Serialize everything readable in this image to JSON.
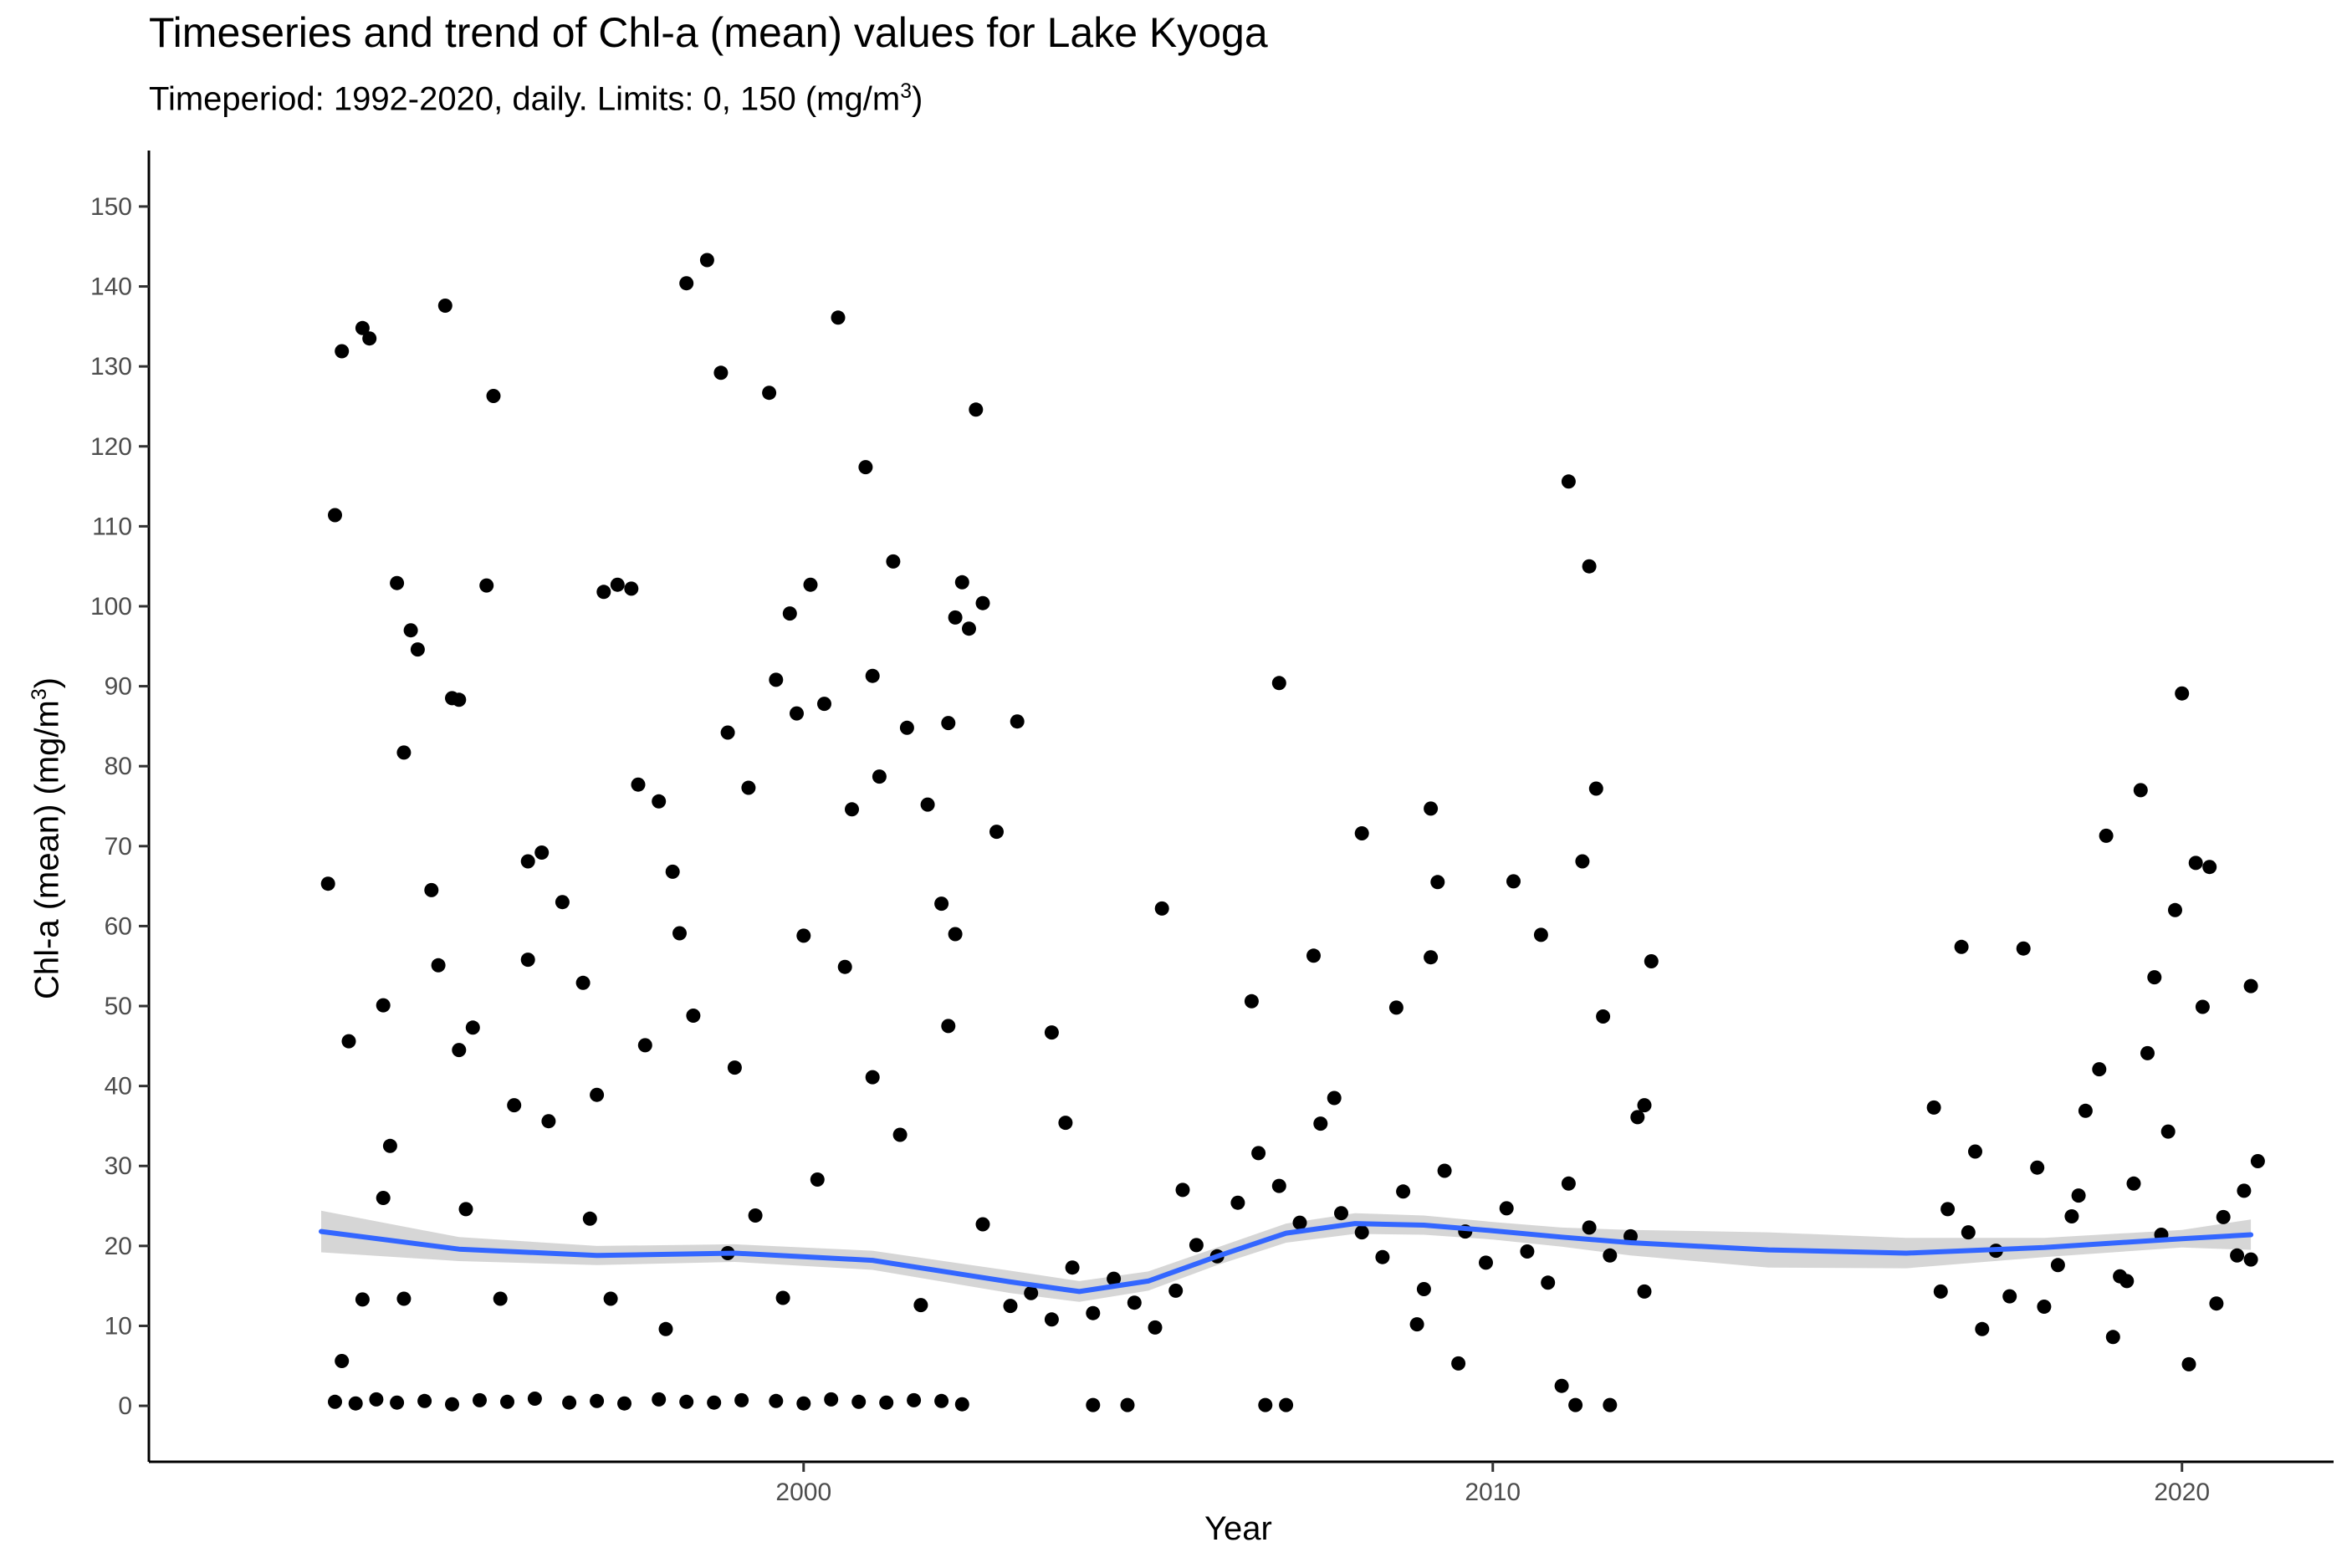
{
  "chart_data": {
    "type": "scatter",
    "title": "Timeseries and trend of Chl-a (mean) values for Lake Kyoga",
    "subtitle_prefix": "Timeperiod: 1992-2020, daily. Limits: 0, 150 (mg/m",
    "subtitle_exp": "3",
    "subtitle_suffix": ")",
    "xlabel": "Year",
    "ylabel_prefix": "Chl-a (mean) (mg/m",
    "ylabel_exp": "3",
    "ylabel_suffix": ")",
    "xlim": [
      1990.5,
      2022.2
    ],
    "ylim": [
      -7,
      157
    ],
    "x_ticks": [
      2000,
      2010,
      2020
    ],
    "x_tick_labels": [
      "2000",
      "2010",
      "2020"
    ],
    "y_ticks": [
      0,
      10,
      20,
      30,
      40,
      50,
      60,
      70,
      80,
      90,
      100,
      110,
      120,
      130,
      140,
      150
    ],
    "y_tick_labels": [
      "0",
      "10",
      "20",
      "30",
      "40",
      "50",
      "60",
      "70",
      "80",
      "90",
      "100",
      "110",
      "120",
      "130",
      "140",
      "150"
    ],
    "grid": false,
    "legend": "none",
    "colors": {
      "points": "#000000",
      "trend": "#3366ff",
      "ribbon": "#999999"
    },
    "points_note": "Representative sample of the daily observations (the source plots several thousand points).",
    "points": [
      [
        1993.2,
        0.5
      ],
      [
        1993.5,
        0.3
      ],
      [
        1993.8,
        0.8
      ],
      [
        1994.1,
        0.4
      ],
      [
        1994.5,
        0.6
      ],
      [
        1994.9,
        0.2
      ],
      [
        1995.3,
        0.7
      ],
      [
        1995.7,
        0.5
      ],
      [
        1996.1,
        0.9
      ],
      [
        1996.6,
        0.4
      ],
      [
        1997.0,
        0.6
      ],
      [
        1997.4,
        0.3
      ],
      [
        1997.9,
        0.8
      ],
      [
        1998.3,
        0.5
      ],
      [
        1998.7,
        0.4
      ],
      [
        1999.1,
        0.7
      ],
      [
        1999.6,
        0.6
      ],
      [
        2000.0,
        0.3
      ],
      [
        2000.4,
        0.8
      ],
      [
        2000.8,
        0.5
      ],
      [
        2001.2,
        0.4
      ],
      [
        2001.6,
        0.7
      ],
      [
        2002.0,
        0.6
      ],
      [
        2002.3,
        0.2
      ],
      [
        1993.1,
        65.3
      ],
      [
        1993.2,
        111.4
      ],
      [
        1993.3,
        131.9
      ],
      [
        1993.6,
        134.8
      ],
      [
        1993.7,
        133.5
      ],
      [
        1993.9,
        50.1
      ],
      [
        1994.1,
        102.9
      ],
      [
        1994.2,
        81.7
      ],
      [
        1994.3,
        97.0
      ],
      [
        1994.4,
        94.6
      ],
      [
        1994.6,
        64.5
      ],
      [
        1994.8,
        137.6
      ],
      [
        1994.9,
        88.5
      ],
      [
        1995.0,
        88.3
      ],
      [
        1995.2,
        47.3
      ],
      [
        1995.4,
        102.6
      ],
      [
        1995.5,
        126.3
      ],
      [
        1995.8,
        37.6
      ],
      [
        1996.0,
        68.1
      ],
      [
        1996.2,
        69.2
      ],
      [
        1996.5,
        63.0
      ],
      [
        1996.8,
        52.9
      ],
      [
        1997.1,
        101.8
      ],
      [
        1997.3,
        102.7
      ],
      [
        1997.5,
        102.2
      ],
      [
        1997.6,
        77.7
      ],
      [
        1997.9,
        75.6
      ],
      [
        1998.1,
        66.8
      ],
      [
        1998.3,
        140.4
      ],
      [
        1998.6,
        143.3
      ],
      [
        1998.8,
        129.2
      ],
      [
        1998.9,
        84.2
      ],
      [
        1999.2,
        77.3
      ],
      [
        1999.5,
        126.7
      ],
      [
        1999.6,
        90.8
      ],
      [
        1999.8,
        99.1
      ],
      [
        1999.9,
        86.6
      ],
      [
        2000.1,
        102.7
      ],
      [
        2000.3,
        87.8
      ],
      [
        2000.5,
        136.1
      ],
      [
        2000.7,
        74.6
      ],
      [
        2000.9,
        117.4
      ],
      [
        2001.0,
        91.3
      ],
      [
        2001.1,
        78.7
      ],
      [
        2001.3,
        105.6
      ],
      [
        2001.5,
        84.8
      ],
      [
        2001.8,
        75.2
      ],
      [
        2002.0,
        62.8
      ],
      [
        2002.1,
        85.4
      ],
      [
        2002.2,
        98.6
      ],
      [
        2002.3,
        103.0
      ],
      [
        2002.4,
        97.2
      ],
      [
        2002.5,
        124.6
      ],
      [
        2002.6,
        100.4
      ],
      [
        2002.8,
        71.8
      ],
      [
        2003.1,
        85.6
      ],
      [
        1993.4,
        45.6
      ],
      [
        1993.6,
        13.3
      ],
      [
        1994.0,
        32.5
      ],
      [
        1994.7,
        55.1
      ],
      [
        1995.1,
        24.6
      ],
      [
        1995.6,
        13.4
      ],
      [
        1996.3,
        35.6
      ],
      [
        1996.9,
        23.4
      ],
      [
        1997.2,
        13.4
      ],
      [
        1997.7,
        45.1
      ],
      [
        1998.0,
        9.6
      ],
      [
        1998.4,
        48.8
      ],
      [
        1998.9,
        19.1
      ],
      [
        1999.3,
        23.8
      ],
      [
        1999.7,
        13.5
      ],
      [
        2000.2,
        28.3
      ],
      [
        2000.6,
        54.9
      ],
      [
        2001.4,
        33.9
      ],
      [
        2001.7,
        12.6
      ],
      [
        2002.1,
        47.5
      ],
      [
        2002.6,
        22.7
      ],
      [
        1993.3,
        5.6
      ],
      [
        1994.2,
        13.4
      ],
      [
        1995.0,
        44.5
      ],
      [
        1996.0,
        55.8
      ],
      [
        1997.0,
        38.9
      ],
      [
        1998.2,
        59.1
      ],
      [
        1999.0,
        42.3
      ],
      [
        2000.0,
        58.8
      ],
      [
        2001.0,
        41.1
      ],
      [
        2002.2,
        59.0
      ],
      [
        1993.9,
        26.0
      ],
      [
        2003.0,
        12.5
      ],
      [
        2003.3,
        14.1
      ],
      [
        2003.6,
        10.8
      ],
      [
        2003.9,
        17.3
      ],
      [
        2004.2,
        11.6
      ],
      [
        2004.5,
        15.9
      ],
      [
        2004.8,
        12.9
      ],
      [
        2005.1,
        9.8
      ],
      [
        2005.4,
        14.4
      ],
      [
        2005.7,
        20.1
      ],
      [
        2006.0,
        18.7
      ],
      [
        2006.3,
        25.4
      ],
      [
        2006.6,
        31.6
      ],
      [
        2006.9,
        27.5
      ],
      [
        2007.2,
        22.9
      ],
      [
        2007.5,
        35.3
      ],
      [
        2007.8,
        24.1
      ],
      [
        2008.1,
        21.7
      ],
      [
        2008.4,
        18.6
      ],
      [
        2008.7,
        26.8
      ],
      [
        2009.0,
        14.6
      ],
      [
        2009.3,
        29.4
      ],
      [
        2009.6,
        21.8
      ],
      [
        2009.9,
        17.9
      ],
      [
        2010.2,
        24.7
      ],
      [
        2010.5,
        19.3
      ],
      [
        2010.8,
        15.4
      ],
      [
        2011.1,
        27.8
      ],
      [
        2011.4,
        22.3
      ],
      [
        2011.7,
        18.8
      ],
      [
        2012.0,
        21.2
      ],
      [
        2012.2,
        14.3
      ],
      [
        2003.6,
        46.7
      ],
      [
        2003.8,
        35.4
      ],
      [
        2004.2,
        0.1
      ],
      [
        2004.7,
        0.1
      ],
      [
        2005.2,
        62.2
      ],
      [
        2005.5,
        27.0
      ],
      [
        2006.5,
        50.6
      ],
      [
        2006.9,
        90.4
      ],
      [
        2006.7,
        0.1
      ],
      [
        2007.0,
        0.1
      ],
      [
        2007.4,
        56.3
      ],
      [
        2007.7,
        38.5
      ],
      [
        2008.1,
        71.6
      ],
      [
        2008.6,
        49.8
      ],
      [
        2009.1,
        74.7
      ],
      [
        2009.2,
        65.5
      ],
      [
        2009.1,
        56.1
      ],
      [
        2010.3,
        65.6
      ],
      [
        2010.7,
        58.9
      ],
      [
        2011.1,
        115.6
      ],
      [
        2011.4,
        105.0
      ],
      [
        2011.5,
        77.2
      ],
      [
        2011.3,
        68.1
      ],
      [
        2011.6,
        48.7
      ],
      [
        2011.0,
        2.5
      ],
      [
        2011.2,
        0.1
      ],
      [
        2011.7,
        0.1
      ],
      [
        2012.3,
        55.6
      ],
      [
        2012.2,
        37.6
      ],
      [
        2012.1,
        36.1
      ],
      [
        2009.5,
        5.3
      ],
      [
        2008.9,
        10.2
      ],
      [
        2016.4,
        37.3
      ],
      [
        2016.6,
        24.6
      ],
      [
        2016.8,
        57.4
      ],
      [
        2017.0,
        31.8
      ],
      [
        2017.3,
        19.4
      ],
      [
        2017.5,
        13.7
      ],
      [
        2017.7,
        57.2
      ],
      [
        2017.9,
        29.8
      ],
      [
        2018.2,
        17.6
      ],
      [
        2018.4,
        23.7
      ],
      [
        2018.6,
        36.9
      ],
      [
        2018.8,
        42.1
      ],
      [
        2018.9,
        71.3
      ],
      [
        2019.1,
        16.2
      ],
      [
        2019.3,
        27.8
      ],
      [
        2019.5,
        44.1
      ],
      [
        2019.4,
        77.0
      ],
      [
        2019.6,
        53.6
      ],
      [
        2019.8,
        34.3
      ],
      [
        2019.9,
        62.0
      ],
      [
        2020.0,
        89.1
      ],
      [
        2020.2,
        67.9
      ],
      [
        2020.3,
        49.9
      ],
      [
        2020.4,
        67.4
      ],
      [
        2020.6,
        23.6
      ],
      [
        2020.8,
        18.8
      ],
      [
        2021.0,
        52.5
      ],
      [
        2021.1,
        30.6
      ],
      [
        2016.5,
        14.3
      ],
      [
        2017.1,
        9.6
      ],
      [
        2018.0,
        12.4
      ],
      [
        2019.0,
        8.6
      ],
      [
        2019.7,
        21.4
      ],
      [
        2020.1,
        5.2
      ],
      [
        2020.5,
        12.8
      ],
      [
        2020.9,
        26.9
      ],
      [
        2021.0,
        18.3
      ],
      [
        2016.9,
        21.7
      ],
      [
        2018.5,
        26.3
      ],
      [
        2019.2,
        15.6
      ]
    ],
    "trend": {
      "x": [
        1993.0,
        1995.0,
        1997.0,
        1999.0,
        2001.0,
        2003.0,
        2004.0,
        2005.0,
        2006.0,
        2007.0,
        2008.0,
        2009.0,
        2010.0,
        2011.0,
        2012.0,
        2014.0,
        2016.0,
        2018.0,
        2020.0,
        2021.0
      ],
      "y": [
        21.8,
        19.6,
        18.8,
        19.1,
        18.2,
        15.5,
        14.3,
        15.6,
        18.7,
        21.6,
        22.8,
        22.6,
        21.9,
        21.1,
        20.4,
        19.5,
        19.1,
        19.8,
        20.9,
        21.4
      ],
      "ci_half_width": [
        2.6,
        1.5,
        1.2,
        1.1,
        1.2,
        1.4,
        1.3,
        1.2,
        1.1,
        1.2,
        1.3,
        1.2,
        1.1,
        1.2,
        1.6,
        2.2,
        1.9,
        1.2,
        1.1,
        1.9
      ]
    }
  }
}
